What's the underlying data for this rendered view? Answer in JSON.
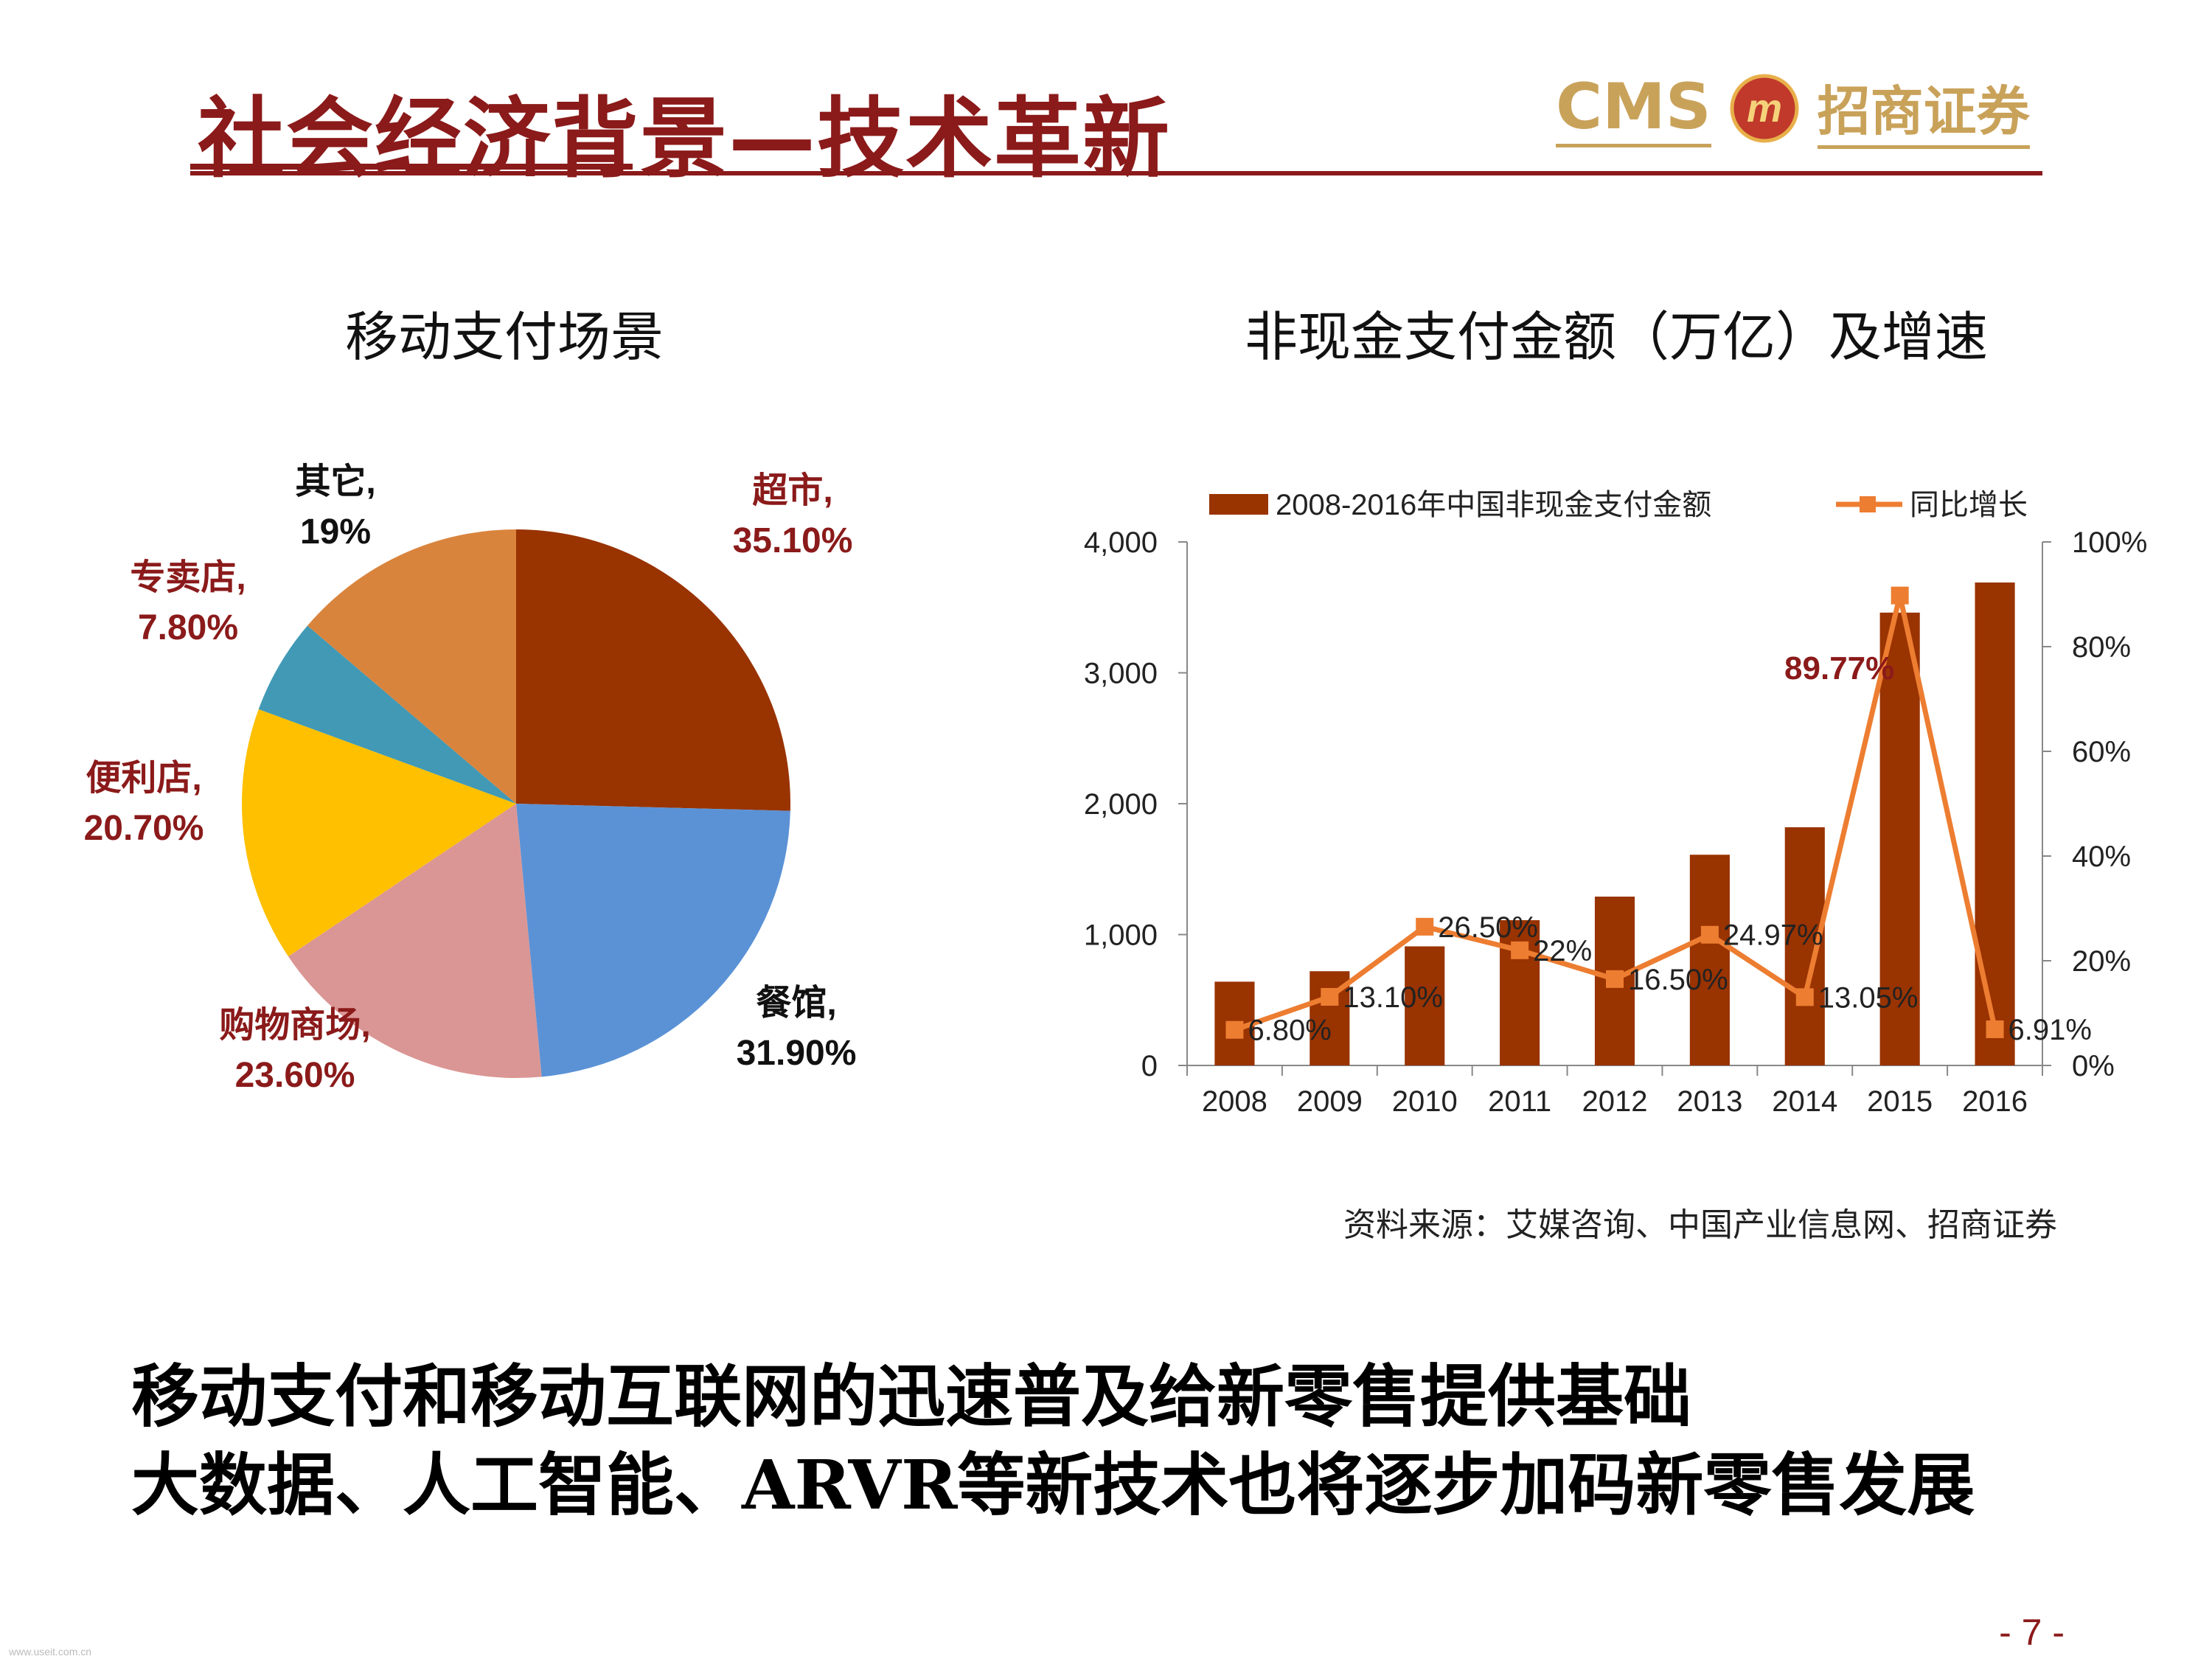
{
  "header": {
    "title": "社会经济背景—技术革新",
    "logo_text": "CMS",
    "logo_badge": "m",
    "logo_cn": "招商证券"
  },
  "pie_section": {
    "title": "移动支付场景"
  },
  "bar_section": {
    "title": "非现金支付金额（万亿）及增速"
  },
  "source": "资料来源：艾媒咨询、中国产业信息网、招商证券",
  "summary": {
    "line1": "移动支付和移动互联网的迅速普及给新零售提供基础",
    "line2": "大数据、人工智能、ARVR等新技术也将逐步加码新零售发展"
  },
  "page_number": "- 7 -",
  "watermark": "www.useit.com.cn",
  "colors": {
    "brand": "#8B1A1A",
    "line": "#ED7D31",
    "logo": "#C9A25A"
  },
  "chart_data": [
    {
      "type": "pie",
      "slices": [
        {
          "name": "超市",
          "label": "35.10%",
          "value": 35.1,
          "color": "#993300",
          "label_color": "#8B1A1A"
        },
        {
          "name": "餐馆",
          "label": "31.90%",
          "value": 31.9,
          "color": "#5B92D6",
          "label_color": "#111111"
        },
        {
          "name": "购物商场",
          "label": "23.60%",
          "value": 23.6,
          "color": "#DA9694",
          "label_color": "#8B1A1A"
        },
        {
          "name": "便利店",
          "label": "20.70%",
          "value": 20.7,
          "color": "#FFC000",
          "label_color": "#8B1A1A"
        },
        {
          "name": "专卖店",
          "label": "7.80%",
          "value": 7.8,
          "color": "#4199B5",
          "label_color": "#8B1A1A"
        },
        {
          "name": "其它",
          "label": "19%",
          "value": 19,
          "color": "#D9843D",
          "label_color": "#111111"
        }
      ]
    },
    {
      "type": "bar",
      "categories": [
        "2008",
        "2009",
        "2010",
        "2011",
        "2012",
        "2013",
        "2014",
        "2015",
        "2016"
      ],
      "series": [
        {
          "name": "2008-2016年中国非现金支付金额",
          "type": "bar",
          "axis": "left",
          "values": [
            640,
            720,
            910,
            1110,
            1290,
            1610,
            1820,
            3460,
            3690
          ]
        },
        {
          "name": "同比增长",
          "type": "line",
          "axis": "right",
          "values": [
            6.8,
            13.1,
            26.5,
            22,
            16.5,
            24.97,
            13.05,
            89.77,
            6.91
          ],
          "labels": [
            "6.80%",
            "13.10%",
            "26.50%",
            "22%",
            "16.50%",
            "24.97%",
            "13.05%",
            "89.77%",
            "6.91%"
          ]
        }
      ],
      "ylim_left": [
        0,
        4000
      ],
      "ylim_right": [
        0,
        100
      ],
      "yticks_left": [
        "0",
        "1,000",
        "2,000",
        "3,000",
        "4,000"
      ],
      "yticks_right": [
        "0%",
        "20%",
        "40%",
        "60%",
        "80%",
        "100%"
      ],
      "legend_position": "top",
      "highlight_label_index": 7,
      "bar_color": "#993300",
      "line_color": "#ED7D31"
    }
  ]
}
